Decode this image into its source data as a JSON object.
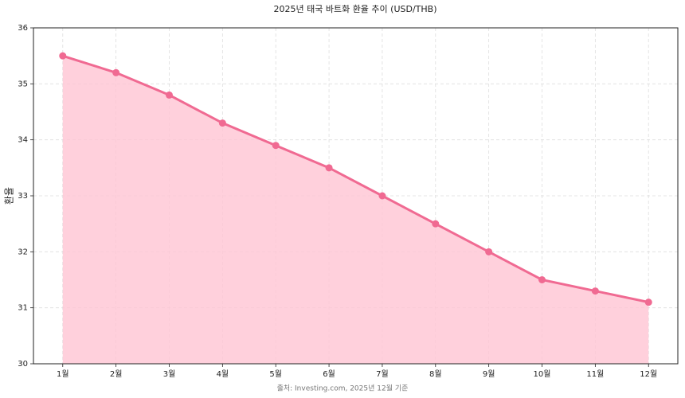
{
  "chart_data": {
    "type": "line",
    "title": "2025년 태국 바트화 환율 추이 (USD/THB)",
    "y_label": "환율",
    "annotation": "출처: Investing.com, 2025년 12월 기준",
    "categories": [
      "1월",
      "2월",
      "3월",
      "4월",
      "5월",
      "6월",
      "7월",
      "8월",
      "9월",
      "10월",
      "11월",
      "12월"
    ],
    "values": [
      35.5,
      35.2,
      34.8,
      34.3,
      33.9,
      33.5,
      33.0,
      32.5,
      32.0,
      31.5,
      31.3,
      31.1
    ],
    "color": "#f06a92",
    "fill_color": "#ffc4d3",
    "ylim": [
      30,
      36
    ],
    "yticks": [
      30,
      31,
      32,
      33,
      34,
      35,
      36
    ],
    "grid": true
  }
}
